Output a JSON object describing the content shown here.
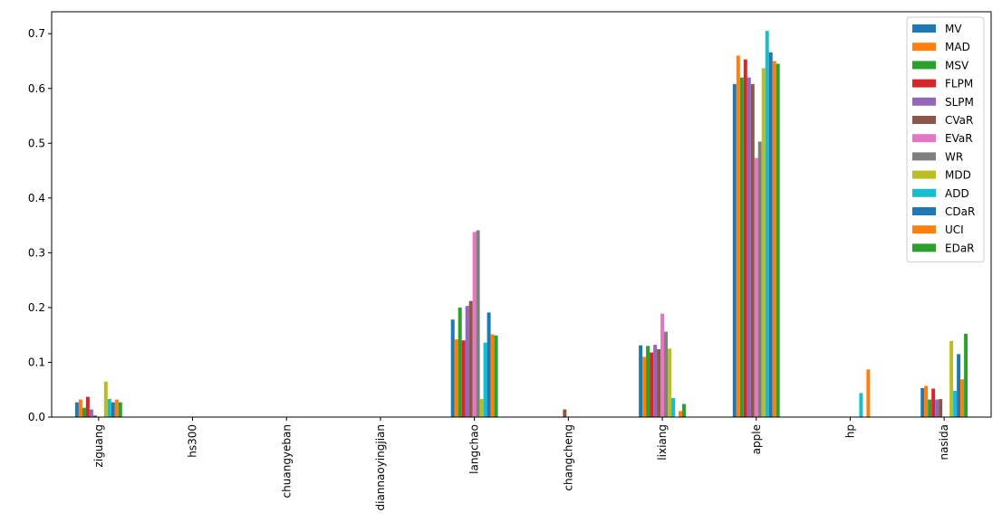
{
  "chart_data": {
    "type": "bar",
    "title": "",
    "xlabel": "",
    "ylabel": "",
    "ylim": [
      0,
      0.74
    ],
    "yticks": [
      0.0,
      0.1,
      0.2,
      0.3,
      0.4,
      0.5,
      0.6,
      0.7
    ],
    "ytick_labels": [
      "0.0",
      "0.1",
      "0.2",
      "0.3",
      "0.4",
      "0.5",
      "0.6",
      "0.7"
    ],
    "grid": false,
    "legend_position": "top-right",
    "categories": [
      "ziguang",
      "hs300",
      "chuangyeban",
      "diannaoyingjian",
      "langchao",
      "changcheng",
      "lixiang",
      "apple",
      "hp",
      "nasida"
    ],
    "series": [
      {
        "name": "MV",
        "color": "#1f77b4",
        "values": [
          0.027,
          0,
          0,
          0,
          0.178,
          0,
          0.131,
          0.608,
          0,
          0.053
        ]
      },
      {
        "name": "MAD",
        "color": "#ff7f0e",
        "values": [
          0.032,
          0,
          0,
          0,
          0.142,
          0,
          0.11,
          0.66,
          0,
          0.057
        ]
      },
      {
        "name": "MSV",
        "color": "#2ca02c",
        "values": [
          0.017,
          0,
          0,
          0,
          0.2,
          0,
          0.13,
          0.62,
          0,
          0.032
        ]
      },
      {
        "name": "FLPM",
        "color": "#d62728",
        "values": [
          0.037,
          0,
          0,
          0,
          0.14,
          0,
          0.118,
          0.653,
          0,
          0.052
        ]
      },
      {
        "name": "SLPM",
        "color": "#9467bd",
        "values": [
          0.014,
          0,
          0,
          0,
          0.203,
          0,
          0.132,
          0.62,
          0,
          0.032
        ]
      },
      {
        "name": "CVaR",
        "color": "#8c564b",
        "values": [
          0.003,
          0,
          0,
          0,
          0.212,
          0.014,
          0.124,
          0.608,
          0,
          0.033
        ]
      },
      {
        "name": "EVaR",
        "color": "#e377c2",
        "values": [
          0.0,
          0,
          0,
          0,
          0.338,
          0,
          0.189,
          0.473,
          0,
          0.0
        ]
      },
      {
        "name": "WR",
        "color": "#7f7f7f",
        "values": [
          0.0,
          0,
          0,
          0,
          0.341,
          0,
          0.156,
          0.503,
          0,
          0.0
        ]
      },
      {
        "name": "MDD",
        "color": "#bcbd22",
        "values": [
          0.065,
          0,
          0,
          0,
          0.033,
          0,
          0.125,
          0.637,
          0,
          0.139
        ]
      },
      {
        "name": "ADD",
        "color": "#17becf",
        "values": [
          0.033,
          0,
          0,
          0,
          0.136,
          0,
          0.035,
          0.705,
          0.044,
          0.048
        ]
      },
      {
        "name": "CDaR",
        "color": "#1f77b4",
        "values": [
          0.027,
          0,
          0,
          0,
          0.191,
          0,
          0.0,
          0.666,
          0,
          0.115
        ]
      },
      {
        "name": "UCI",
        "color": "#ff7f0e",
        "values": [
          0.032,
          0,
          0,
          0,
          0.151,
          0,
          0.011,
          0.65,
          0.087,
          0.069
        ]
      },
      {
        "name": "EDaR",
        "color": "#2ca02c",
        "values": [
          0.027,
          0,
          0,
          0,
          0.149,
          0,
          0.024,
          0.645,
          0,
          0.152
        ]
      }
    ]
  }
}
